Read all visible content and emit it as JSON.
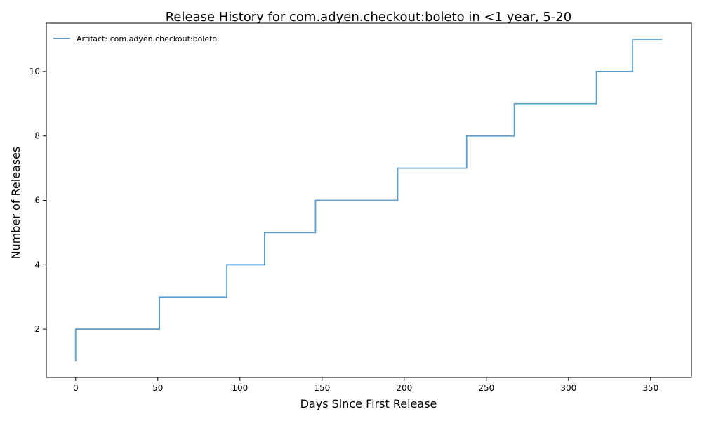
{
  "chart_data": {
    "type": "line",
    "step": "post",
    "title": "Release History for com.adyen.checkout:boleto in <1 year, 5-20",
    "xlabel": "Days Since First Release",
    "ylabel": "Number of Releases",
    "xlim": [
      -17.85,
      374.85
    ],
    "ylim": [
      0.5,
      11.5
    ],
    "xticks": [
      0,
      50,
      100,
      150,
      200,
      250,
      300,
      350
    ],
    "yticks": [
      2,
      4,
      6,
      8,
      10
    ],
    "grid": false,
    "legend_position": "top-left",
    "series": [
      {
        "name": "Artifact: com.adyen.checkout:boleto",
        "color": "#5b9fd0",
        "x": [
          0,
          0,
          51,
          92,
          115,
          146,
          196,
          238,
          267,
          317,
          339,
          357
        ],
        "y": [
          1,
          2,
          3,
          4,
          5,
          6,
          7,
          8,
          9,
          10,
          11,
          11
        ]
      }
    ]
  }
}
